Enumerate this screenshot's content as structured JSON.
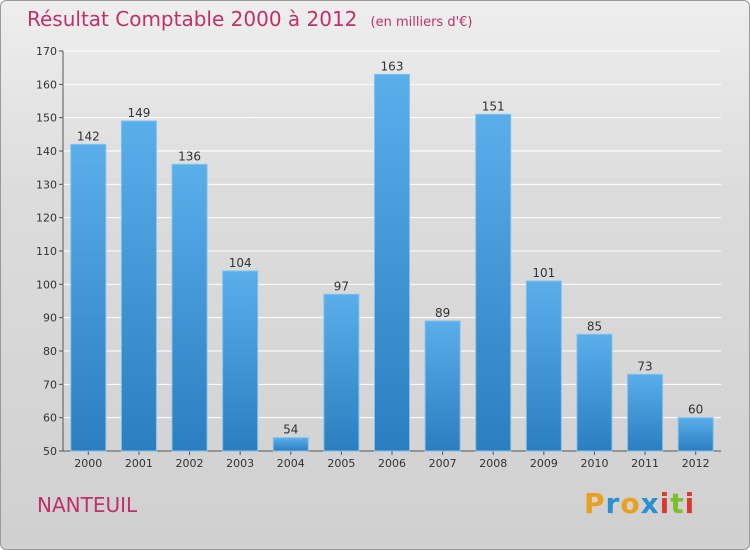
{
  "header": {
    "title": "Résultat Comptable 2000 à 2012",
    "unit": "(en milliers d'€)"
  },
  "footer": {
    "commune": "NANTEUIL",
    "logo_letters": [
      "P",
      "r",
      "o",
      "x",
      "i",
      "t",
      "i"
    ],
    "logo_colors": [
      "#e8a021",
      "#2d8fd0",
      "#e8a021",
      "#2d8fd0",
      "#d93b30",
      "#7bbf2a",
      "#d93b30"
    ]
  },
  "colors": {
    "title": "#c0306a",
    "bar_top": "#5aaeea",
    "bar_bottom": "#2b7ec0",
    "grid": "#ffffff"
  },
  "chart_data": {
    "type": "bar",
    "title": "Résultat Comptable 2000 à 2012",
    "subtitle": "(en milliers d'€)",
    "categories": [
      "2000",
      "2001",
      "2002",
      "2003",
      "2004",
      "2005",
      "2006",
      "2007",
      "2008",
      "2009",
      "2010",
      "2011",
      "2012"
    ],
    "values": [
      142,
      149,
      136,
      104,
      54,
      97,
      163,
      89,
      151,
      101,
      85,
      73,
      60
    ],
    "ylim": [
      50,
      170
    ],
    "yticks": [
      50,
      60,
      70,
      80,
      90,
      100,
      110,
      120,
      130,
      140,
      150,
      160,
      170
    ],
    "grid": true
  }
}
